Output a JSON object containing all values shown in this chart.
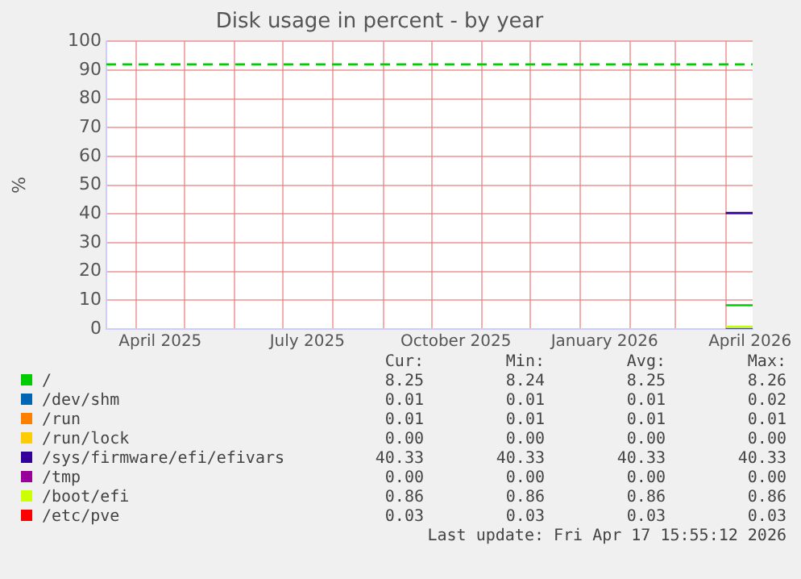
{
  "chart_data": {
    "type": "line",
    "title": "Disk usage in percent - by year",
    "ylabel": "%",
    "xlim": [
      "2025-03-13T16:00",
      "2026-04-17T16:00"
    ],
    "xticks": [
      {
        "value": "2025-04-01",
        "label": null
      },
      {
        "value": "2025-04-16",
        "label": "April 2025"
      },
      {
        "value": "2025-05-01",
        "label": null
      },
      {
        "value": "2025-06-01",
        "label": null
      },
      {
        "value": "2025-07-01",
        "label": null
      },
      {
        "value": "2025-07-16",
        "label": "July 2025"
      },
      {
        "value": "2025-08-01",
        "label": null
      },
      {
        "value": "2025-09-01",
        "label": null
      },
      {
        "value": "2025-10-01",
        "label": null
      },
      {
        "value": "2025-10-16",
        "label": "October 2025"
      },
      {
        "value": "2025-11-01",
        "label": null
      },
      {
        "value": "2025-12-01",
        "label": null
      },
      {
        "value": "2026-01-01",
        "label": null
      },
      {
        "value": "2026-01-16",
        "label": "January 2026"
      },
      {
        "value": "2026-02-01",
        "label": null
      },
      {
        "value": "2026-03-01",
        "label": null
      },
      {
        "value": "2026-04-01",
        "label": null
      },
      {
        "value": "2026-04-16",
        "label": "April 2026"
      }
    ],
    "ylim": [
      0,
      100
    ],
    "yticks": [
      0,
      10,
      20,
      30,
      40,
      50,
      60,
      70,
      80,
      90,
      100
    ],
    "grid": true,
    "legend": "bottom",
    "marker": "none",
    "line_style": "solid",
    "x": [
      "2026-04-01",
      "2026-04-17T15:55"
    ],
    "series": [
      {
        "name": "/",
        "color": "#00cc00",
        "values": [
          8.25,
          8.25
        ]
      },
      {
        "name": "/dev/shm",
        "color": "#0066b3",
        "values": [
          0.01,
          0.01
        ]
      },
      {
        "name": "/run",
        "color": "#ff8000",
        "values": [
          null,
          null
        ]
      },
      {
        "name": "/run/lock",
        "color": "#ffcc00",
        "values": [
          null,
          null
        ]
      },
      {
        "name": "/sys/firmware/efi/efivars",
        "color": "#330099",
        "values": [
          40.33,
          40.33
        ]
      },
      {
        "name": "/tmp",
        "color": "#990099",
        "values": [
          null,
          null
        ]
      },
      {
        "name": "/boot/efi",
        "color": "#ccff00",
        "values": [
          0.86,
          0.86
        ]
      },
      {
        "name": "/etc/pve",
        "color": "#ff0000",
        "values": [
          null,
          null
        ]
      }
    ],
    "ref_lines": [
      {
        "axis": "y",
        "value": 92,
        "color": "#00cc00",
        "line_style": "dashed"
      }
    ],
    "annotations": [
      "Cur:",
      "Min:",
      "Avg:",
      "Max:",
      "8.25",
      "8.24",
      "8.25",
      "8.26",
      "0.01",
      "0.01",
      "0.01",
      "0.02",
      "0.01",
      "0.01",
      "0.01",
      "0.01",
      "0.00",
      "0.00",
      "0.00",
      "0.00",
      "40.33",
      "40.33",
      "40.33",
      "40.33",
      "0.00",
      "0.00",
      "0.00",
      "0.00",
      "0.86",
      "0.86",
      "0.86",
      "0.86",
      "0.03",
      "0.03",
      "0.03",
      "0.03",
      "Last update: Fri Apr 17 15:55:12 2026"
    ]
  }
}
